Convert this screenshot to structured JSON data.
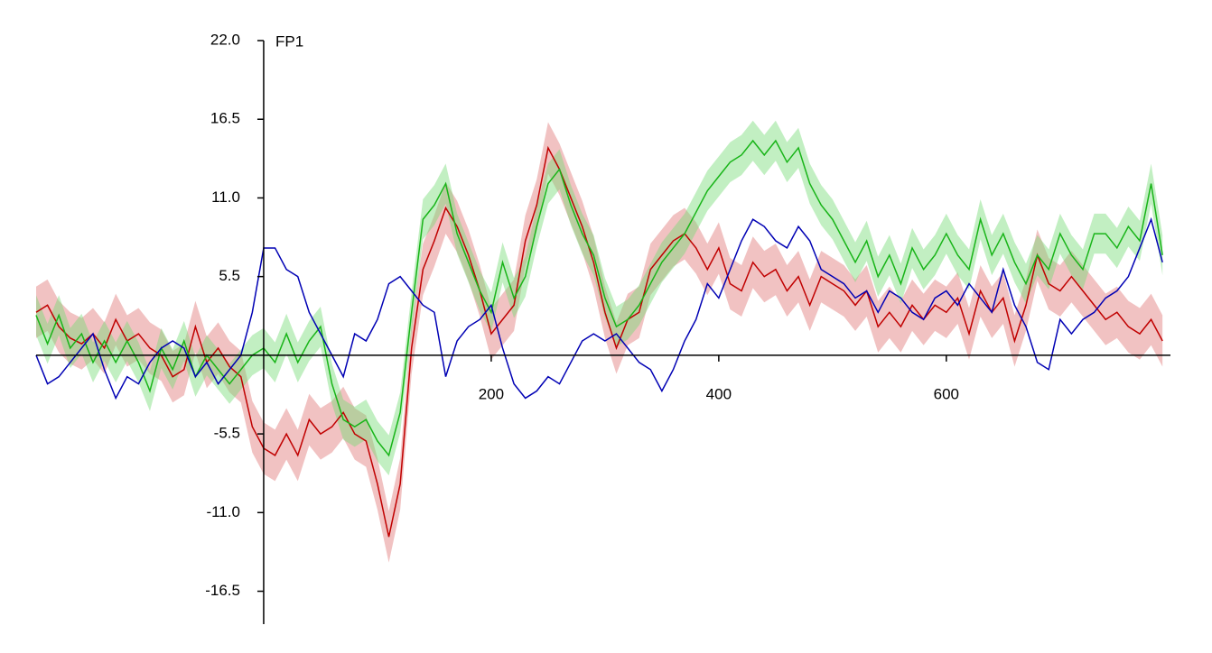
{
  "chart_data": {
    "type": "line",
    "label": "FP1",
    "xlim": [
      -200,
      797
    ],
    "ylim": [
      -18.8,
      22
    ],
    "xticks": [
      200,
      400,
      600
    ],
    "yticks": [
      {
        "value": 22,
        "label": "22.0"
      },
      16.5,
      {
        "value": 11,
        "label": "11.0"
      },
      5.5,
      -5.5,
      {
        "value": -11,
        "label": "-11.0"
      },
      -16.5
    ],
    "x": [
      -200,
      -190,
      -180,
      -170,
      -160,
      -150,
      -140,
      -130,
      -120,
      -110,
      -100,
      -90,
      -80,
      -70,
      -60,
      -50,
      -40,
      -30,
      -20,
      -10,
      0,
      10,
      20,
      30,
      40,
      50,
      60,
      70,
      80,
      90,
      100,
      110,
      120,
      130,
      140,
      150,
      160,
      170,
      180,
      190,
      200,
      210,
      220,
      230,
      240,
      250,
      260,
      270,
      280,
      290,
      300,
      310,
      320,
      330,
      340,
      350,
      360,
      370,
      380,
      390,
      400,
      410,
      420,
      430,
      440,
      450,
      460,
      470,
      480,
      490,
      500,
      510,
      520,
      530,
      540,
      550,
      560,
      570,
      580,
      590,
      600,
      610,
      620,
      630,
      640,
      650,
      660,
      670,
      680,
      690,
      700,
      710,
      720,
      730,
      740,
      750,
      760,
      770,
      780,
      790
    ],
    "series": [
      {
        "color": "#c00000",
        "band_color": "#e07878",
        "error": 1.8,
        "values": [
          3.0,
          3.5,
          2.0,
          1.2,
          0.8,
          1.5,
          0.5,
          2.5,
          1.0,
          1.5,
          0.5,
          0.0,
          -1.5,
          -1.0,
          2.0,
          -0.5,
          0.5,
          -0.8,
          -1.5,
          -5.0,
          -6.5,
          -7.0,
          -5.5,
          -7.0,
          -4.5,
          -5.5,
          -5.0,
          -4.0,
          -5.5,
          -6.0,
          -9.0,
          -12.7,
          -9.0,
          0.5,
          6.0,
          8.0,
          10.3,
          9.0,
          7.0,
          4.5,
          1.5,
          2.5,
          3.5,
          8.0,
          10.5,
          14.5,
          13.0,
          11.0,
          9.0,
          6.5,
          3.0,
          0.5,
          2.5,
          3.0,
          6.0,
          7.0,
          8.0,
          8.5,
          7.5,
          6.0,
          7.5,
          5.0,
          4.5,
          6.5,
          5.5,
          6.0,
          4.5,
          5.5,
          3.5,
          5.5,
          5.0,
          4.5,
          3.5,
          4.5,
          2.0,
          3.0,
          2.0,
          3.5,
          2.5,
          3.5,
          3.0,
          4.0,
          1.5,
          4.5,
          3.0,
          4.0,
          1.0,
          3.5,
          7.0,
          5.0,
          4.5,
          5.5,
          4.5,
          3.5,
          2.5,
          3.0,
          2.0,
          1.5,
          2.5,
          1.0
        ]
      },
      {
        "color": "#18b418",
        "band_color": "#78dc78",
        "error": 1.4,
        "values": [
          2.8,
          0.8,
          2.8,
          0.5,
          1.5,
          -0.5,
          1.0,
          -0.5,
          1.0,
          -0.5,
          -2.5,
          0.5,
          -1.0,
          1.0,
          -1.5,
          0.0,
          -1.0,
          -2.0,
          -1.0,
          0.0,
          0.5,
          -0.5,
          1.5,
          -0.5,
          1.0,
          2.0,
          -2.0,
          -4.5,
          -5.0,
          -4.5,
          -6.0,
          -7.0,
          -4.0,
          3.0,
          9.5,
          10.5,
          12.0,
          8.5,
          6.5,
          4.5,
          3.0,
          6.5,
          4.0,
          5.5,
          9.0,
          12.0,
          13.0,
          10.5,
          8.5,
          7.0,
          4.0,
          2.0,
          2.5,
          3.5,
          5.0,
          6.5,
          7.5,
          8.5,
          10.0,
          11.5,
          12.5,
          13.5,
          14.0,
          15.0,
          14.0,
          15.0,
          13.5,
          14.5,
          12.0,
          10.5,
          9.5,
          8.0,
          6.5,
          8.0,
          5.5,
          7.0,
          5.0,
          7.5,
          6.0,
          7.0,
          8.5,
          7.0,
          6.0,
          9.5,
          7.0,
          8.5,
          6.5,
          5.0,
          7.0,
          6.0,
          8.5,
          7.0,
          6.0,
          8.5,
          8.5,
          7.5,
          9.0,
          8.0,
          12.0,
          7.0
        ]
      },
      {
        "color": "#0000b4",
        "values": [
          0.0,
          -2.0,
          -1.5,
          -0.5,
          0.5,
          1.5,
          -1.0,
          -3.0,
          -1.5,
          -2.0,
          -0.5,
          0.5,
          1.0,
          0.5,
          -1.5,
          -0.5,
          -2.0,
          -1.0,
          0.0,
          3.0,
          7.5,
          7.5,
          6.0,
          5.5,
          3.0,
          1.5,
          0.0,
          -1.5,
          1.5,
          1.0,
          2.5,
          5.0,
          5.5,
          4.5,
          3.5,
          3.0,
          -1.5,
          1.0,
          2.0,
          2.5,
          3.5,
          0.5,
          -2.0,
          -3.0,
          -2.5,
          -1.5,
          -2.0,
          -0.5,
          1.0,
          1.5,
          1.0,
          1.5,
          0.5,
          -0.5,
          -1.0,
          -2.5,
          -1.0,
          1.0,
          2.5,
          5.0,
          4.0,
          6.0,
          8.0,
          9.5,
          9.0,
          8.0,
          7.5,
          9.0,
          8.0,
          6.0,
          5.5,
          5.0,
          4.0,
          4.5,
          3.0,
          4.5,
          4.0,
          3.0,
          2.5,
          4.0,
          4.5,
          3.5,
          5.0,
          4.0,
          3.0,
          6.0,
          3.5,
          2.0,
          -0.5,
          -1.0,
          2.5,
          1.5,
          2.5,
          3.0,
          4.0,
          4.5,
          5.5,
          7.5,
          9.5,
          6.5
        ]
      }
    ]
  }
}
